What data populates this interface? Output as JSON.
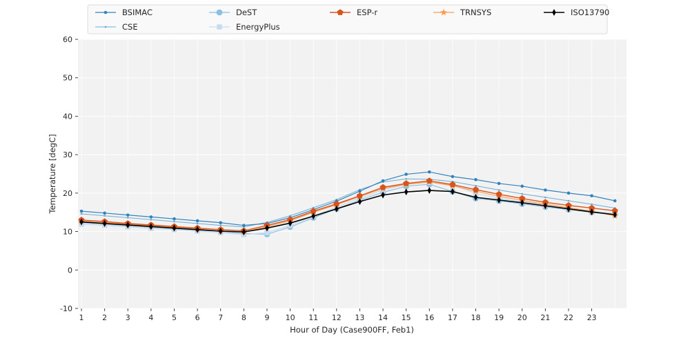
{
  "chart_data": {
    "type": "line",
    "title": "",
    "xlabel": "Hour of Day (Case900FF, Feb1)",
    "ylabel": "Temperature [degC]",
    "x": [
      1,
      2,
      3,
      4,
      5,
      6,
      7,
      8,
      9,
      10,
      11,
      12,
      13,
      14,
      15,
      16,
      17,
      18,
      19,
      20,
      21,
      22,
      23,
      24
    ],
    "xticks": [
      1,
      2,
      3,
      4,
      5,
      6,
      7,
      8,
      9,
      10,
      11,
      12,
      13,
      14,
      15,
      16,
      17,
      18,
      19,
      20,
      21,
      22,
      23
    ],
    "xgrid": [
      1,
      2,
      3,
      4,
      5,
      6,
      7,
      8,
      9,
      10,
      11,
      12,
      13,
      14,
      15,
      16,
      17,
      18,
      19,
      20,
      21,
      22,
      23,
      24
    ],
    "yticks": [
      -10,
      0,
      10,
      20,
      30,
      40,
      50,
      60
    ],
    "xlim": [
      0.85,
      24.5
    ],
    "ylim": [
      -10,
      60
    ],
    "grid": true,
    "legend_position": "top",
    "colors": {
      "plot_background": "#f2f2f3",
      "gridline": "#fcfcfc",
      "tick": "#2b2b2b",
      "text": "#262626",
      "legend_background": "#f9f9fa",
      "legend_border": "#dcdcdc"
    },
    "series": [
      {
        "name": "BSIMAC",
        "color": "#3182bd",
        "marker": "dot",
        "line_width": 1.2,
        "z": 4,
        "legend_col": 0,
        "legend_row": 0,
        "values": [
          15.3,
          14.8,
          14.3,
          13.8,
          13.3,
          12.8,
          12.3,
          11.6,
          12.1,
          13.6,
          15.7,
          17.9,
          20.5,
          23.2,
          24.9,
          25.5,
          24.3,
          23.5,
          22.5,
          21.8,
          20.8,
          20.0,
          19.3,
          18.0
        ]
      },
      {
        "name": "CSE",
        "color": "#6baed6",
        "marker": "point",
        "line_width": 1.0,
        "z": 3,
        "legend_col": 0,
        "legend_row": 1,
        "values": [
          14.6,
          14.1,
          13.6,
          13.1,
          12.6,
          12.1,
          11.6,
          11.2,
          12.4,
          14.1,
          16.2,
          18.3,
          20.9,
          22.9,
          23.7,
          23.6,
          23.0,
          21.9,
          20.8,
          19.8,
          18.9,
          18.0,
          17.1,
          16.1
        ]
      },
      {
        "name": "DeST",
        "color": "#8cc0e0",
        "marker": "circle",
        "line_width": 1.2,
        "z": 1,
        "legend_col": 1,
        "legend_row": 0,
        "values": [
          12.3,
          11.9,
          11.5,
          11.1,
          10.7,
          10.4,
          10.0,
          9.5,
          9.3,
          11.2,
          13.6,
          15.9,
          18.2,
          20.2,
          21.8,
          22.3,
          20.4,
          18.6,
          18.0,
          17.2,
          16.4,
          15.7,
          15.0,
          14.4
        ]
      },
      {
        "name": "EnergyPlus",
        "color": "#c6dbef",
        "marker": "square",
        "line_width": 1.2,
        "z": 2,
        "legend_col": 1,
        "legend_row": 1,
        "values": [
          11.9,
          11.6,
          11.2,
          10.8,
          10.5,
          10.1,
          9.7,
          9.2,
          9.7,
          11.6,
          14.0,
          16.4,
          18.7,
          20.8,
          22.3,
          22.8,
          22.2,
          19.9,
          18.7,
          17.7,
          16.8,
          16.0,
          15.3,
          14.7
        ]
      },
      {
        "name": "ESP-r",
        "color": "#d9541a",
        "marker": "pentagon",
        "line_width": 1.4,
        "z": 6,
        "legend_col": 2,
        "legend_row": 0,
        "values": [
          13.0,
          12.6,
          12.1,
          11.7,
          11.3,
          10.9,
          10.5,
          10.2,
          11.6,
          13.1,
          15.3,
          17.2,
          19.3,
          21.5,
          22.5,
          23.2,
          22.2,
          20.9,
          19.7,
          18.6,
          17.6,
          16.8,
          16.1,
          15.4
        ]
      },
      {
        "name": "TRNSYS",
        "color": "#fd9a4d",
        "marker": "star",
        "line_width": 1.2,
        "z": 5,
        "legend_col": 3,
        "legend_row": 0,
        "values": [
          12.7,
          12.3,
          11.9,
          11.5,
          11.1,
          10.7,
          10.1,
          9.9,
          11.3,
          12.8,
          15.0,
          17.0,
          19.1,
          21.2,
          22.3,
          22.9,
          21.9,
          20.5,
          19.2,
          18.1,
          17.1,
          16.2,
          15.3,
          14.1
        ]
      },
      {
        "name": "ISO13790",
        "color": "#000000",
        "marker": "thin-diamond",
        "line_width": 1.6,
        "z": 7,
        "legend_col": 4,
        "legend_row": 0,
        "values": [
          12.5,
          12.1,
          11.7,
          11.3,
          10.9,
          10.5,
          10.1,
          9.9,
          10.9,
          12.2,
          14.0,
          15.9,
          17.8,
          19.5,
          20.3,
          20.7,
          20.4,
          18.9,
          18.2,
          17.5,
          16.7,
          15.9,
          15.1,
          14.4
        ]
      }
    ]
  }
}
